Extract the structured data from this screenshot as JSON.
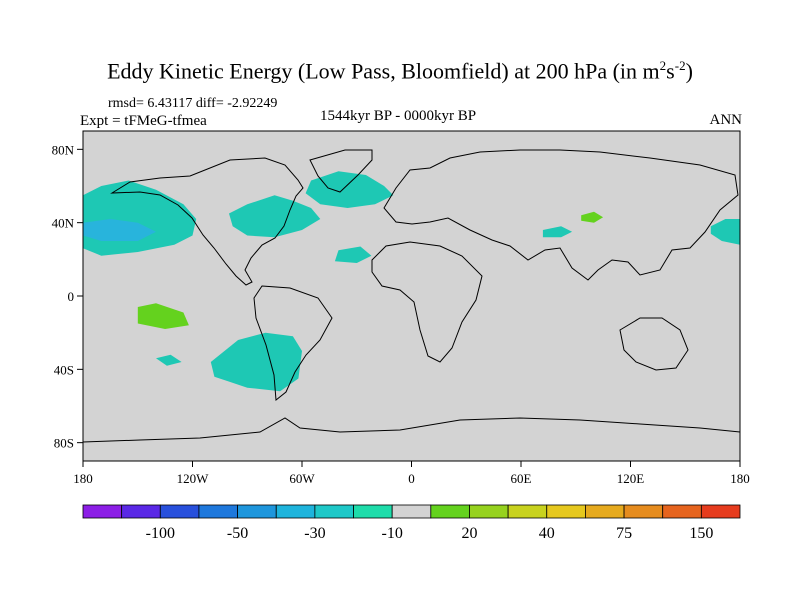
{
  "header": {
    "title_main": "Eddy Kinetic Energy (Low Pass, Bloomfield) at 200 hPa (in m",
    "title_sup1": "2",
    "title_mid": "s",
    "title_sup2": "-2",
    "title_end": ")",
    "stats": "rmsd= 6.43117 diff= -2.92249",
    "experiment": "Expt = tFMeG-tfmea",
    "period": "1544kyr BP - 0000kyr BP",
    "season": "ANN"
  },
  "map": {
    "land_color": "#d3d3d3",
    "ocean_color": "#d3d3d3",
    "x_ticks": [
      {
        "lon": -180,
        "label": "180"
      },
      {
        "lon": -120,
        "label": "120W"
      },
      {
        "lon": -60,
        "label": "60W"
      },
      {
        "lon": 0,
        "label": "0"
      },
      {
        "lon": 60,
        "label": "60E"
      },
      {
        "lon": 120,
        "label": "120E"
      },
      {
        "lon": 180,
        "label": "180"
      }
    ],
    "y_ticks": [
      {
        "lat": 80,
        "label": "80N"
      },
      {
        "lat": 40,
        "label": "40N"
      },
      {
        "lat": 0,
        "label": "0"
      },
      {
        "lat": -40,
        "label": "40S"
      },
      {
        "lat": -80,
        "label": "80S"
      }
    ],
    "anomaly_regions": [
      {
        "name": "north-pacific",
        "color": "#1ec8b4",
        "points": [
          [
            -180,
            55
          ],
          [
            -170,
            60
          ],
          [
            -155,
            63
          ],
          [
            -140,
            58
          ],
          [
            -125,
            50
          ],
          [
            -118,
            42
          ],
          [
            -120,
            33
          ],
          [
            -130,
            28
          ],
          [
            -150,
            24
          ],
          [
            -170,
            22
          ],
          [
            -180,
            26
          ]
        ]
      },
      {
        "name": "north-pacific-core",
        "color": "#28b4dc",
        "points": [
          [
            -180,
            40
          ],
          [
            -165,
            42
          ],
          [
            -150,
            40
          ],
          [
            -140,
            35
          ],
          [
            -150,
            30
          ],
          [
            -170,
            30
          ],
          [
            -180,
            33
          ]
        ]
      },
      {
        "name": "north-america-atlantic",
        "color": "#1ec8b4",
        "points": [
          [
            -100,
            45
          ],
          [
            -90,
            50
          ],
          [
            -75,
            55
          ],
          [
            -65,
            52
          ],
          [
            -55,
            48
          ],
          [
            -50,
            42
          ],
          [
            -60,
            36
          ],
          [
            -75,
            32
          ],
          [
            -90,
            33
          ],
          [
            -98,
            38
          ]
        ]
      },
      {
        "name": "north-atlantic",
        "color": "#1ec8b4",
        "points": [
          [
            -55,
            63
          ],
          [
            -40,
            68
          ],
          [
            -25,
            66
          ],
          [
            -15,
            60
          ],
          [
            -10,
            55
          ],
          [
            -20,
            50
          ],
          [
            -35,
            48
          ],
          [
            -50,
            50
          ],
          [
            -58,
            56
          ]
        ]
      },
      {
        "name": "north-atlantic-south",
        "color": "#1ec8b4",
        "points": [
          [
            -40,
            25
          ],
          [
            -28,
            27
          ],
          [
            -22,
            22
          ],
          [
            -30,
            18
          ],
          [
            -42,
            19
          ]
        ]
      },
      {
        "name": "central-asia",
        "color": "#1ec8b4",
        "points": [
          [
            72,
            36
          ],
          [
            82,
            38
          ],
          [
            88,
            35
          ],
          [
            82,
            32
          ],
          [
            72,
            32
          ]
        ]
      },
      {
        "name": "tibet-positive",
        "color": "#64d21e",
        "points": [
          [
            93,
            44
          ],
          [
            100,
            46
          ],
          [
            105,
            43
          ],
          [
            100,
            40
          ],
          [
            93,
            41
          ]
        ]
      },
      {
        "name": "north-pacific-east",
        "color": "#1ec8b4",
        "points": [
          [
            164,
            38
          ],
          [
            172,
            42
          ],
          [
            180,
            42
          ],
          [
            180,
            28
          ],
          [
            170,
            30
          ],
          [
            164,
            34
          ]
        ]
      },
      {
        "name": "tropical-pacific-positive",
        "color": "#64d21e",
        "points": [
          [
            -150,
            -6
          ],
          [
            -140,
            -4
          ],
          [
            -125,
            -9
          ],
          [
            -122,
            -16
          ],
          [
            -135,
            -18
          ],
          [
            -150,
            -15
          ]
        ]
      },
      {
        "name": "south-pacific-small",
        "color": "#1ec8b4",
        "points": [
          [
            -140,
            -34
          ],
          [
            -132,
            -32
          ],
          [
            -126,
            -36
          ],
          [
            -134,
            -38
          ]
        ]
      },
      {
        "name": "south-pacific",
        "color": "#1ec8b4",
        "points": [
          [
            -110,
            -36
          ],
          [
            -95,
            -24
          ],
          [
            -80,
            -20
          ],
          [
            -65,
            -22
          ],
          [
            -60,
            -30
          ],
          [
            -62,
            -45
          ],
          [
            -72,
            -52
          ],
          [
            -90,
            -50
          ],
          [
            -108,
            -44
          ]
        ]
      }
    ]
  },
  "colorbar": {
    "colors": [
      "#8c1ee6",
      "#5a28e6",
      "#2850dc",
      "#1e78dc",
      "#1e96dc",
      "#1eb4dc",
      "#1ec8c8",
      "#1edcaa",
      "#d3d3d3",
      "#64d21e",
      "#96d21e",
      "#c8d21e",
      "#e6c81e",
      "#e6aa1e",
      "#e68c1e",
      "#e6641e",
      "#e63c1e"
    ],
    "labels": [
      {
        "boundary": 2,
        "text": "-100"
      },
      {
        "boundary": 4,
        "text": "-50"
      },
      {
        "boundary": 6,
        "text": "-30"
      },
      {
        "boundary": 8,
        "text": "-10"
      },
      {
        "boundary": 10,
        "text": "20"
      },
      {
        "boundary": 12,
        "text": "40"
      },
      {
        "boundary": 14,
        "text": "75"
      },
      {
        "boundary": 16,
        "text": "150"
      }
    ]
  }
}
